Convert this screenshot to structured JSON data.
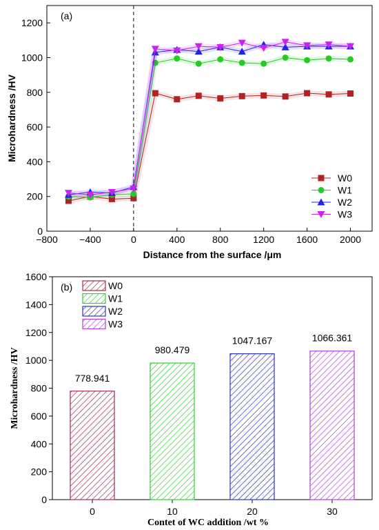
{
  "chart_data": [
    {
      "type": "line",
      "panel_label": "(a)",
      "xlabel": "Distance from the surface /μm",
      "ylabel": "Microhardness /HV",
      "xlim": [
        -800,
        2200
      ],
      "ylim": [
        0,
        1300
      ],
      "xticks": [
        -800,
        -400,
        0,
        400,
        800,
        1200,
        1600,
        2000
      ],
      "yticks": [
        0,
        200,
        400,
        600,
        800,
        1000,
        1200
      ],
      "reference_line_x": 0,
      "legend_position": "lower-right",
      "x": [
        -600,
        -400,
        -200,
        0,
        200,
        400,
        600,
        800,
        1000,
        1200,
        1400,
        1600,
        1800,
        2000
      ],
      "series": [
        {
          "name": "W0",
          "color": "#b22222",
          "marker": "square",
          "values": [
            175,
            200,
            185,
            190,
            795,
            760,
            780,
            765,
            778,
            782,
            776,
            795,
            788,
            793
          ]
        },
        {
          "name": "W1",
          "color": "#22cc22",
          "marker": "circle",
          "values": [
            200,
            195,
            210,
            215,
            970,
            995,
            965,
            990,
            970,
            965,
            1000,
            985,
            995,
            990
          ]
        },
        {
          "name": "W2",
          "color": "#2222ee",
          "marker": "triangle-up",
          "values": [
            210,
            225,
            220,
            255,
            1030,
            1045,
            1035,
            1060,
            1035,
            1075,
            1060,
            1065,
            1065,
            1065
          ]
        },
        {
          "name": "W3",
          "color": "#cc22ee",
          "marker": "triangle-down",
          "values": [
            220,
            210,
            225,
            245,
            1050,
            1040,
            1065,
            1060,
            1085,
            1055,
            1090,
            1070,
            1075,
            1065
          ]
        }
      ]
    },
    {
      "type": "bar",
      "panel_label": "(b)",
      "xlabel": "Contet of WC addition /wt %",
      "ylabel": "Microhardness /HV",
      "ylim": [
        0,
        1600
      ],
      "yticks": [
        0,
        200,
        400,
        600,
        800,
        1000,
        1200,
        1400,
        1600
      ],
      "categories": [
        "0",
        "10",
        "20",
        "30"
      ],
      "values": [
        778.941,
        980.479,
        1047.167,
        1066.361
      ],
      "value_labels": [
        "778.941",
        "980.479",
        "1047.167",
        "1066.361"
      ],
      "legend_position": "top-left",
      "series_names": [
        "W0",
        "W1",
        "W2",
        "W3"
      ],
      "colors": [
        "#a0304a",
        "#33cc33",
        "#3030c0",
        "#b040e0"
      ]
    }
  ]
}
